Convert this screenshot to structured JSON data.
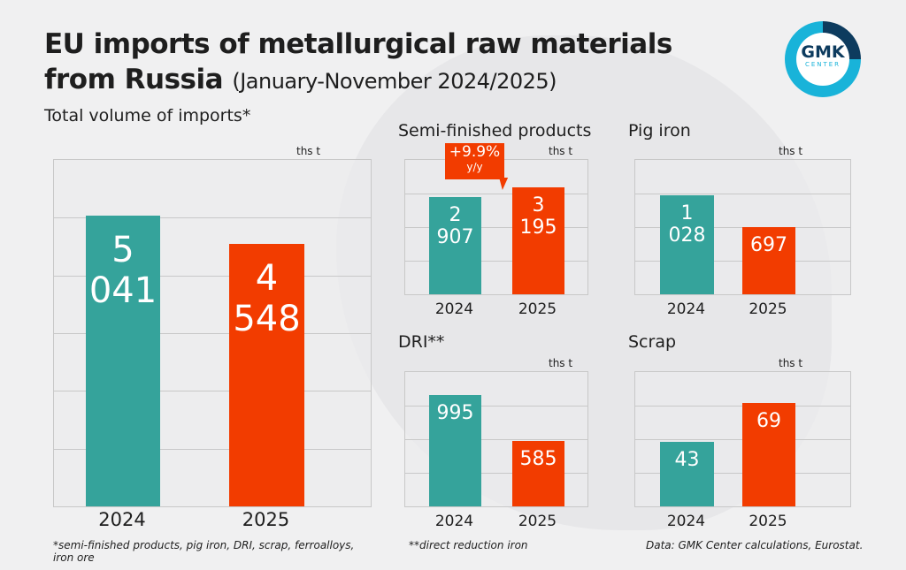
{
  "title": {
    "line1": "EU imports of metallurgical raw materials",
    "line2": "from Russia",
    "period": "(January-November 2024/2025)"
  },
  "logo": {
    "text": "GMK",
    "sub": "CENTER"
  },
  "colors": {
    "y2024": "#35a39b",
    "y2025": "#f23c00"
  },
  "badge": {
    "value": "+9.9%",
    "label": "y/y"
  },
  "chart_data": [
    {
      "type": "bar",
      "title": "Total volume of imports*",
      "unit": "ths t",
      "categories": [
        "2024",
        "2025"
      ],
      "values": [
        5041,
        4548
      ],
      "labels": [
        "5 041",
        "4 548"
      ],
      "ylim": [
        0,
        6000
      ]
    },
    {
      "type": "bar",
      "title": "Semi-finished products",
      "unit": "ths t",
      "categories": [
        "2024",
        "2025"
      ],
      "values": [
        2907,
        3195
      ],
      "labels": [
        "2 907",
        "3 195"
      ],
      "ylim": [
        0,
        4000
      ]
    },
    {
      "type": "bar",
      "title": "Pig iron",
      "unit": "ths t",
      "categories": [
        "2024",
        "2025"
      ],
      "values": [
        1028,
        697
      ],
      "labels": [
        "1 028",
        "697"
      ],
      "ylim": [
        0,
        1400
      ]
    },
    {
      "type": "bar",
      "title": "DRI**",
      "unit": "ths t",
      "categories": [
        "2024",
        "2025"
      ],
      "values": [
        995,
        585
      ],
      "labels": [
        "995",
        "585"
      ],
      "ylim": [
        0,
        1200
      ]
    },
    {
      "type": "bar",
      "title": "Scrap",
      "unit": "ths t",
      "categories": [
        "2024",
        "2025"
      ],
      "values": [
        43,
        69
      ],
      "labels": [
        "43",
        "69"
      ],
      "ylim": [
        0,
        90
      ]
    }
  ],
  "notes": {
    "total": "*semi-finished products, pig iron, DRI, scrap, ferroalloys, iron ore",
    "dri": "**direct reduction iron",
    "source": "Data: GMK Center calculations, Eurostat."
  }
}
